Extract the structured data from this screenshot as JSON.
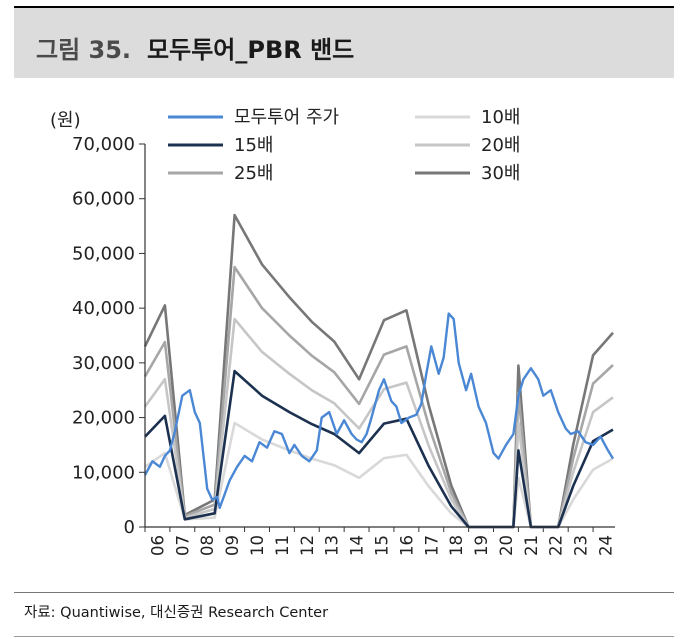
{
  "header": {
    "figure_label": "그림 35.",
    "figure_title": "모두투어_PBR 밴드"
  },
  "source": "자료: Quantiwise, 대신증권 Research Center",
  "chart_data": {
    "type": "line",
    "ylabel": "(원)",
    "ylim": [
      0,
      70000
    ],
    "yticks": [
      "70,000",
      "60,000",
      "50,000",
      "40,000",
      "30,000",
      "20,000",
      "10,000",
      "0"
    ],
    "xticks": [
      "06",
      "07",
      "08",
      "09",
      "10",
      "11",
      "12",
      "13",
      "14",
      "15",
      "16",
      "17",
      "18",
      "19",
      "20",
      "21",
      "22",
      "23",
      "24"
    ],
    "x_range": [
      2006.0,
      2024.8
    ],
    "grid": false,
    "legend_position": "top",
    "series": [
      {
        "name": "모두투어 주가",
        "color": "#4a87d4",
        "width": 2.4,
        "values": [
          [
            2006.0,
            9500
          ],
          [
            2006.3,
            12000
          ],
          [
            2006.6,
            11000
          ],
          [
            2006.8,
            13000
          ],
          [
            2007.0,
            14000
          ],
          [
            2007.2,
            17500
          ],
          [
            2007.5,
            24000
          ],
          [
            2007.8,
            25000
          ],
          [
            2008.0,
            21000
          ],
          [
            2008.2,
            19000
          ],
          [
            2008.5,
            7000
          ],
          [
            2008.7,
            5000
          ],
          [
            2008.9,
            5500
          ],
          [
            2009.0,
            3500
          ],
          [
            2009.2,
            6000
          ],
          [
            2009.4,
            8500
          ],
          [
            2009.7,
            11000
          ],
          [
            2010.0,
            13000
          ],
          [
            2010.3,
            12000
          ],
          [
            2010.6,
            15500
          ],
          [
            2010.9,
            14500
          ],
          [
            2011.2,
            17500
          ],
          [
            2011.5,
            17000
          ],
          [
            2011.8,
            13500
          ],
          [
            2012.0,
            15000
          ],
          [
            2012.3,
            13000
          ],
          [
            2012.6,
            12000
          ],
          [
            2012.9,
            14000
          ],
          [
            2013.1,
            20000
          ],
          [
            2013.4,
            21000
          ],
          [
            2013.7,
            17000
          ],
          [
            2014.0,
            19500
          ],
          [
            2014.3,
            17000
          ],
          [
            2014.5,
            16000
          ],
          [
            2014.7,
            15500
          ],
          [
            2014.9,
            17000
          ],
          [
            2015.1,
            20000
          ],
          [
            2015.4,
            25000
          ],
          [
            2015.6,
            27000
          ],
          [
            2015.9,
            23000
          ],
          [
            2016.1,
            22000
          ],
          [
            2016.3,
            19000
          ],
          [
            2016.6,
            20000
          ],
          [
            2016.9,
            20500
          ],
          [
            2017.1,
            22500
          ],
          [
            2017.3,
            28000
          ],
          [
            2017.5,
            33000
          ],
          [
            2017.8,
            28000
          ],
          [
            2018.0,
            31000
          ],
          [
            2018.2,
            39000
          ],
          [
            2018.4,
            38000
          ],
          [
            2018.6,
            30000
          ],
          [
            2018.9,
            25000
          ],
          [
            2019.1,
            28000
          ],
          [
            2019.4,
            22000
          ],
          [
            2019.7,
            19000
          ],
          [
            2020.0,
            13500
          ],
          [
            2020.2,
            12500
          ],
          [
            2020.5,
            15000
          ],
          [
            2020.8,
            17000
          ],
          [
            2021.0,
            24000
          ],
          [
            2021.2,
            27000
          ],
          [
            2021.5,
            29000
          ],
          [
            2021.8,
            27000
          ],
          [
            2022.0,
            24000
          ],
          [
            2022.3,
            25000
          ],
          [
            2022.6,
            21000
          ],
          [
            2022.9,
            18000
          ],
          [
            2023.1,
            17000
          ],
          [
            2023.4,
            17500
          ],
          [
            2023.7,
            15500
          ],
          [
            2024.0,
            15000
          ],
          [
            2024.3,
            16500
          ],
          [
            2024.6,
            14000
          ],
          [
            2024.8,
            12500
          ]
        ]
      },
      {
        "name": "10배",
        "color": "#d9d9d9",
        "width": 2.6,
        "values": [
          [
            2006.0,
            11000
          ],
          [
            2006.8,
            13500
          ],
          [
            2007.6,
            1400
          ],
          [
            2008.8,
            1700
          ],
          [
            2009.6,
            19000
          ],
          [
            2010.7,
            16000
          ],
          [
            2011.8,
            14000
          ],
          [
            2012.7,
            12500
          ],
          [
            2013.6,
            11300
          ],
          [
            2014.6,
            9000
          ],
          [
            2015.6,
            12600
          ],
          [
            2016.5,
            13200
          ],
          [
            2017.4,
            7400
          ],
          [
            2018.3,
            2500
          ],
          [
            2019.0,
            0
          ],
          [
            2020.8,
            0
          ],
          [
            2021.0,
            9000
          ],
          [
            2021.5,
            0
          ],
          [
            2022.6,
            0
          ],
          [
            2023.2,
            5000
          ],
          [
            2024.0,
            10500
          ],
          [
            2024.8,
            12500
          ]
        ]
      },
      {
        "name": "15배",
        "color": "#1c3150",
        "width": 2.6,
        "values": [
          [
            2006.0,
            16500
          ],
          [
            2006.8,
            20300
          ],
          [
            2007.6,
            1400
          ],
          [
            2008.8,
            2500
          ],
          [
            2009.6,
            28500
          ],
          [
            2010.7,
            24000
          ],
          [
            2011.8,
            21000
          ],
          [
            2012.7,
            18800
          ],
          [
            2013.6,
            17000
          ],
          [
            2014.6,
            13500
          ],
          [
            2015.6,
            18900
          ],
          [
            2016.5,
            19800
          ],
          [
            2017.4,
            11100
          ],
          [
            2018.3,
            3800
          ],
          [
            2019.0,
            0
          ],
          [
            2020.8,
            0
          ],
          [
            2021.0,
            14000
          ],
          [
            2021.5,
            0
          ],
          [
            2022.6,
            0
          ],
          [
            2023.2,
            7500
          ],
          [
            2024.0,
            15700
          ],
          [
            2024.8,
            17800
          ]
        ]
      },
      {
        "name": "20배",
        "color": "#c6c6c6",
        "width": 2.6,
        "values": [
          [
            2006.0,
            22000
          ],
          [
            2006.8,
            27000
          ],
          [
            2007.6,
            1700
          ],
          [
            2008.8,
            3300
          ],
          [
            2009.6,
            38000
          ],
          [
            2010.7,
            32000
          ],
          [
            2011.8,
            28000
          ],
          [
            2012.7,
            25000
          ],
          [
            2013.6,
            22600
          ],
          [
            2014.6,
            18000
          ],
          [
            2015.6,
            25200
          ],
          [
            2016.5,
            26400
          ],
          [
            2017.4,
            14800
          ],
          [
            2018.3,
            5100
          ],
          [
            2019.0,
            0
          ],
          [
            2020.8,
            0
          ],
          [
            2021.0,
            19000
          ],
          [
            2021.5,
            0
          ],
          [
            2022.6,
            0
          ],
          [
            2023.2,
            10000
          ],
          [
            2024.0,
            21000
          ],
          [
            2024.8,
            23700
          ]
        ]
      },
      {
        "name": "25배",
        "color": "#a6a6a6",
        "width": 2.6,
        "values": [
          [
            2006.0,
            27500
          ],
          [
            2006.8,
            33800
          ],
          [
            2007.6,
            2000
          ],
          [
            2008.8,
            4100
          ],
          [
            2009.6,
            47500
          ],
          [
            2010.7,
            40000
          ],
          [
            2011.8,
            35000
          ],
          [
            2012.7,
            31300
          ],
          [
            2013.6,
            28300
          ],
          [
            2014.6,
            22500
          ],
          [
            2015.6,
            31500
          ],
          [
            2016.5,
            33000
          ],
          [
            2017.4,
            18500
          ],
          [
            2018.3,
            6300
          ],
          [
            2019.0,
            0
          ],
          [
            2020.8,
            0
          ],
          [
            2021.0,
            24500
          ],
          [
            2021.5,
            0
          ],
          [
            2022.6,
            0
          ],
          [
            2023.2,
            12500
          ],
          [
            2024.0,
            26200
          ],
          [
            2024.8,
            29600
          ]
        ]
      },
      {
        "name": "30배",
        "color": "#777777",
        "width": 2.6,
        "values": [
          [
            2006.0,
            33000
          ],
          [
            2006.8,
            40500
          ],
          [
            2007.6,
            2200
          ],
          [
            2008.8,
            5000
          ],
          [
            2009.6,
            57000
          ],
          [
            2010.7,
            48000
          ],
          [
            2011.8,
            42000
          ],
          [
            2012.7,
            37500
          ],
          [
            2013.6,
            33900
          ],
          [
            2014.6,
            27000
          ],
          [
            2015.6,
            37800
          ],
          [
            2016.5,
            39600
          ],
          [
            2017.4,
            22200
          ],
          [
            2018.3,
            7600
          ],
          [
            2019.0,
            0
          ],
          [
            2020.8,
            0
          ],
          [
            2021.0,
            29500
          ],
          [
            2021.5,
            0
          ],
          [
            2022.6,
            0
          ],
          [
            2023.2,
            15000
          ],
          [
            2024.0,
            31400
          ],
          [
            2024.8,
            35500
          ]
        ]
      }
    ]
  }
}
